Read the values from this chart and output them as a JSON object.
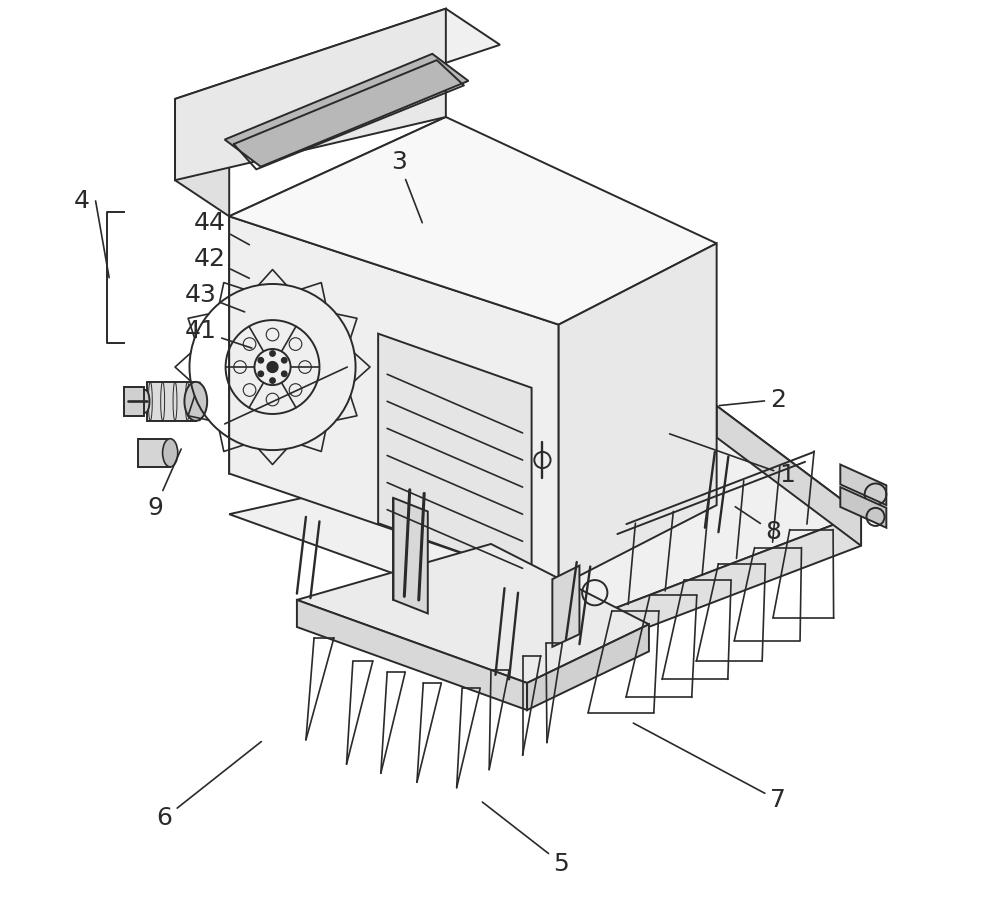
{
  "bg_color": "#ffffff",
  "line_color": "#2a2a2a",
  "line_width": 1.4,
  "fig_width": 10.0,
  "fig_height": 9.11
}
